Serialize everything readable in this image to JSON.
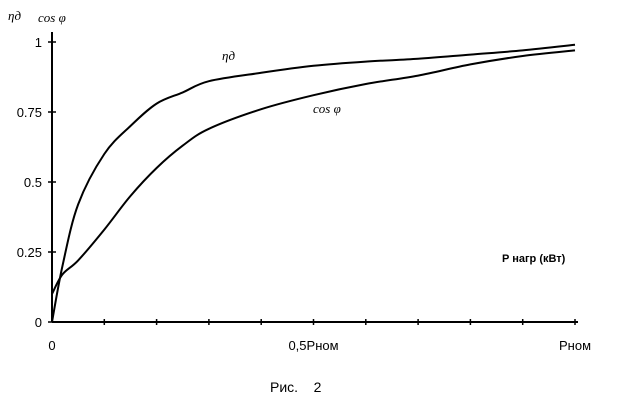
{
  "chart_data": {
    "type": "line",
    "y_axis_title_1": "ηд",
    "y_axis_title_2": "cos φ",
    "xlabel": "P нагр (кВт)",
    "caption": "Рис.    2",
    "y_ticks": [
      "0",
      "0.25",
      "0.5",
      "0.75",
      "1"
    ],
    "y_tick_values": [
      0,
      0.25,
      0.5,
      0.75,
      1
    ],
    "x_ticks": [
      "0",
      "0,5Рном",
      "Рном"
    ],
    "x_tick_values": [
      0,
      0.5,
      1
    ],
    "xlim": [
      0,
      1
    ],
    "ylim": [
      0,
      1
    ],
    "series": [
      {
        "name": "ηд",
        "x": [
          0,
          0.02,
          0.05,
          0.1,
          0.15,
          0.2,
          0.25,
          0.3,
          0.4,
          0.5,
          0.6,
          0.7,
          0.8,
          0.9,
          1.0
        ],
        "y": [
          0,
          0.2,
          0.42,
          0.6,
          0.7,
          0.78,
          0.82,
          0.86,
          0.89,
          0.915,
          0.93,
          0.94,
          0.955,
          0.97,
          0.99
        ]
      },
      {
        "name": "cos φ",
        "x": [
          0,
          0.02,
          0.05,
          0.1,
          0.15,
          0.2,
          0.25,
          0.3,
          0.4,
          0.5,
          0.6,
          0.7,
          0.8,
          0.9,
          1.0
        ],
        "y": [
          0.1,
          0.17,
          0.22,
          0.33,
          0.45,
          0.55,
          0.63,
          0.69,
          0.76,
          0.81,
          0.85,
          0.88,
          0.92,
          0.95,
          0.97
        ]
      }
    ]
  }
}
